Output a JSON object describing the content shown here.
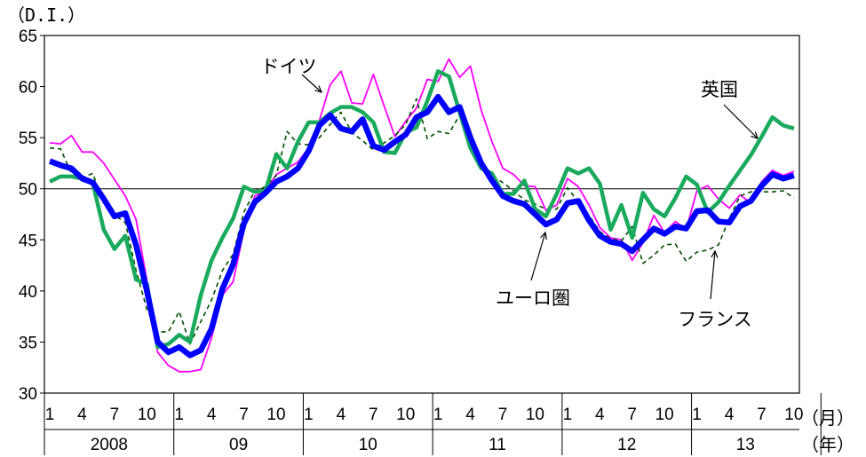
{
  "chart_data": {
    "type": "line",
    "unit_label": "（D.I.）",
    "x_unit_month": "（月）",
    "x_unit_year": "（年）",
    "ylim": [
      30,
      65
    ],
    "y_ticks": [
      30,
      35,
      40,
      45,
      50,
      55,
      60,
      65
    ],
    "reference_line": 50,
    "x_month_ticks": [
      "1",
      "4",
      "7",
      "10",
      "1",
      "4",
      "7",
      "10",
      "1",
      "4",
      "7",
      "10",
      "1",
      "4",
      "7",
      "10",
      "1",
      "4",
      "7",
      "10",
      "1",
      "4",
      "7",
      "10"
    ],
    "x_year_labels": [
      "2008",
      "09",
      "10",
      "11",
      "12",
      "13"
    ],
    "x_count": 70,
    "grid": false,
    "series": [
      {
        "name": "ユーロ圏",
        "color": "#0000ff",
        "values": [
          52.7,
          52.3,
          52.0,
          51.0,
          50.6,
          49.0,
          47.3,
          47.6,
          44.5,
          40.0,
          35.0,
          34.0,
          34.5,
          33.7,
          34.2,
          36.3,
          40.2,
          42.6,
          46.6,
          48.7,
          49.6,
          50.7,
          51.2,
          52.0,
          53.7,
          56.2,
          57.2,
          55.9,
          55.6,
          56.8,
          54.2,
          53.8,
          54.6,
          55.3,
          57.0,
          57.5,
          59.0,
          57.5,
          58.0,
          55.0,
          52.5,
          50.8,
          49.3,
          48.8,
          48.5,
          47.5,
          46.5,
          47.0,
          48.6,
          48.8,
          46.9,
          45.4,
          44.8,
          44.6,
          43.9,
          45.0,
          46.1,
          45.6,
          46.3,
          46.1,
          47.8,
          47.9,
          46.8,
          46.7,
          48.3,
          48.8,
          50.3,
          51.4,
          51.0,
          51.3
        ]
      },
      {
        "name": "ドイツ",
        "color": "#ff00ff",
        "values": [
          54.5,
          54.4,
          55.2,
          53.6,
          53.6,
          52.5,
          50.9,
          49.3,
          47.0,
          41.0,
          34.0,
          32.7,
          32.1,
          32.1,
          32.3,
          35.4,
          39.6,
          40.9,
          45.9,
          49.3,
          49.8,
          51.4,
          52.0,
          52.6,
          54.0,
          56.7,
          60.2,
          61.5,
          58.4,
          58.3,
          61.2,
          58.1,
          55.1,
          56.6,
          57.9,
          60.7,
          60.5,
          62.7,
          60.9,
          62.0,
          57.7,
          54.6,
          52.0,
          51.4,
          50.3,
          50.2,
          47.9,
          48.4,
          51.0,
          50.2,
          48.4,
          46.2,
          45.2,
          45.0,
          43.0,
          44.7,
          47.4,
          45.7,
          46.8,
          46.0,
          49.8,
          50.3,
          49.0,
          48.1,
          49.4,
          48.6,
          50.7,
          51.8,
          51.3,
          51.7
        ]
      },
      {
        "name": "フランス",
        "color": "#004d00",
        "dash": true,
        "values": [
          54.0,
          53.9,
          51.5,
          51.1,
          51.5,
          48.5,
          47.4,
          46.7,
          42.0,
          38.2,
          36.0,
          36.0,
          38.0,
          34.8,
          37.0,
          39.1,
          42.0,
          43.6,
          47.7,
          49.8,
          50.2,
          51.3,
          55.6,
          54.4,
          54.3,
          55.0,
          56.3,
          57.5,
          55.5,
          54.7,
          53.8,
          54.5,
          55.2,
          56.3,
          58.8,
          54.9,
          55.6,
          55.4,
          57.2,
          54.2,
          52.3,
          51.3,
          50.6,
          49.8,
          48.9,
          48.5,
          48.0,
          48.0,
          50.1,
          48.7,
          47.4,
          45.8,
          45.1,
          44.9,
          46.3,
          42.7,
          43.5,
          44.5,
          44.6,
          42.9,
          43.8,
          44.0,
          44.5,
          47.1,
          49.3,
          49.7,
          49.7,
          49.7,
          49.8,
          49.1
        ]
      },
      {
        "name": "英国",
        "color": "#1aaa5c",
        "values": [
          50.7,
          51.2,
          51.2,
          51.0,
          50.5,
          46.0,
          44.1,
          45.4,
          41.1,
          40.7,
          34.5,
          34.8,
          35.7,
          35.0,
          39.6,
          43.0,
          45.2,
          47.1,
          50.2,
          49.7,
          49.8,
          53.4,
          52.0,
          54.6,
          56.5,
          56.5,
          57.4,
          58.0,
          58.0,
          57.5,
          56.5,
          53.6,
          53.5,
          55.5,
          56.0,
          58.6,
          61.5,
          61.0,
          57.5,
          54.0,
          52.0,
          51.5,
          49.5,
          49.5,
          50.8,
          48.0,
          47.3,
          49.5,
          52.0,
          51.5,
          52.0,
          50.5,
          46.0,
          48.4,
          45.2,
          49.6,
          48.0,
          47.3,
          49.1,
          51.2,
          50.4,
          47.7,
          48.7,
          50.3,
          51.8,
          53.3,
          55.1,
          57.0,
          56.2,
          55.9
        ]
      }
    ],
    "annotations": [
      {
        "text": "ドイツ",
        "series": "ドイツ"
      },
      {
        "text": "英国",
        "series": "英国"
      },
      {
        "text": "ユーロ圏",
        "series": "ユーロ圏"
      },
      {
        "text": "フランス",
        "series": "フランス"
      }
    ]
  }
}
